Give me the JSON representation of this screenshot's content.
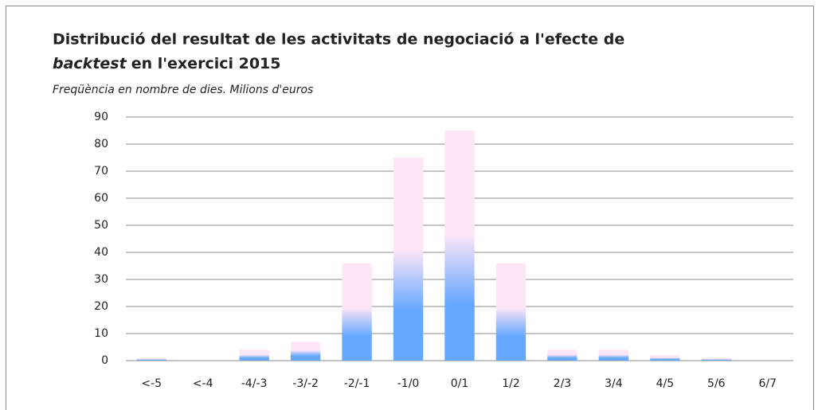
{
  "chart_data": {
    "type": "bar",
    "title": [
      "Distribució del resultat de les activitats de negociació a l'efecte de",
      "backtest",
      "en l'exercici 2015"
    ],
    "subtitle": "Freqüència en nombre de dies. Milions d'euros",
    "categories": [
      "<-5",
      "<-4",
      "-4/-3",
      "-3/-2",
      "-2/-1",
      "-1/0",
      "0/1",
      "1/2",
      "2/3",
      "3/4",
      "4/5",
      "5/6",
      "6/7"
    ],
    "values": [
      1,
      0,
      4,
      7,
      36,
      75,
      85,
      36,
      4,
      4,
      2,
      1,
      0
    ],
    "color": [
      "#ffe6f7",
      "#66a8ff"
    ],
    "ylim": [
      0,
      90
    ],
    "yticks": [
      0,
      10,
      20,
      30,
      40,
      50,
      60,
      70,
      80,
      90
    ],
    "grid": true
  }
}
